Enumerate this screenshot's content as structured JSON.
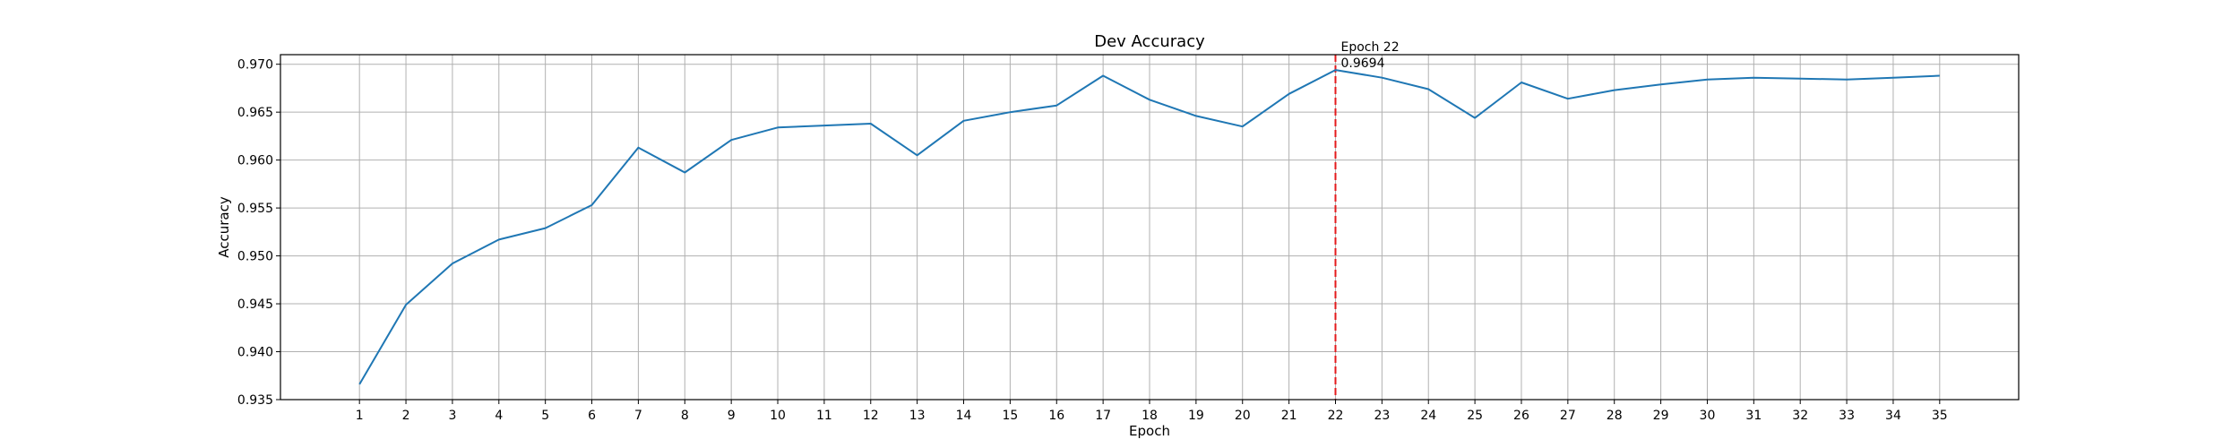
{
  "chart_data": {
    "type": "line",
    "title": "Dev Accuracy",
    "xlabel": "Epoch",
    "ylabel": "Accuracy",
    "x": [
      1,
      2,
      3,
      4,
      5,
      6,
      7,
      8,
      9,
      10,
      11,
      12,
      13,
      14,
      15,
      16,
      17,
      18,
      19,
      20,
      21,
      22,
      23,
      24,
      25,
      26,
      27,
      28,
      29,
      30,
      31,
      32,
      33,
      34,
      35
    ],
    "y": [
      0.9366,
      0.9449,
      0.9492,
      0.9517,
      0.9529,
      0.9553,
      0.9613,
      0.9587,
      0.9621,
      0.9634,
      0.9636,
      0.9638,
      0.9605,
      0.9641,
      0.965,
      0.9657,
      0.9688,
      0.9663,
      0.9646,
      0.9635,
      0.9669,
      0.9694,
      0.9686,
      0.9674,
      0.9644,
      0.9681,
      0.9664,
      0.9673,
      0.9679,
      0.9684,
      0.9686,
      0.9685,
      0.9684,
      0.9686,
      0.9688
    ],
    "xlim": [
      -0.7,
      36.7
    ],
    "ylim": [
      0.935,
      0.971
    ],
    "xticks": [
      1,
      2,
      3,
      4,
      5,
      6,
      7,
      8,
      9,
      10,
      11,
      12,
      13,
      14,
      15,
      16,
      17,
      18,
      19,
      20,
      21,
      22,
      23,
      24,
      25,
      26,
      27,
      28,
      29,
      30,
      31,
      32,
      33,
      34,
      35
    ],
    "yticks": [
      0.935,
      0.94,
      0.945,
      0.95,
      0.955,
      0.96,
      0.965,
      0.97
    ],
    "ytick_labels": [
      "0.935",
      "0.940",
      "0.945",
      "0.950",
      "0.955",
      "0.960",
      "0.965",
      "0.970"
    ],
    "grid": true,
    "line_color": "#1f77b4",
    "marker_line": {
      "x": 22,
      "color": "#e41a1c",
      "style": "dashed"
    },
    "annotation": {
      "line1": "Epoch 22",
      "line2": "0.9694",
      "x": 22,
      "y": 0.9694
    }
  }
}
